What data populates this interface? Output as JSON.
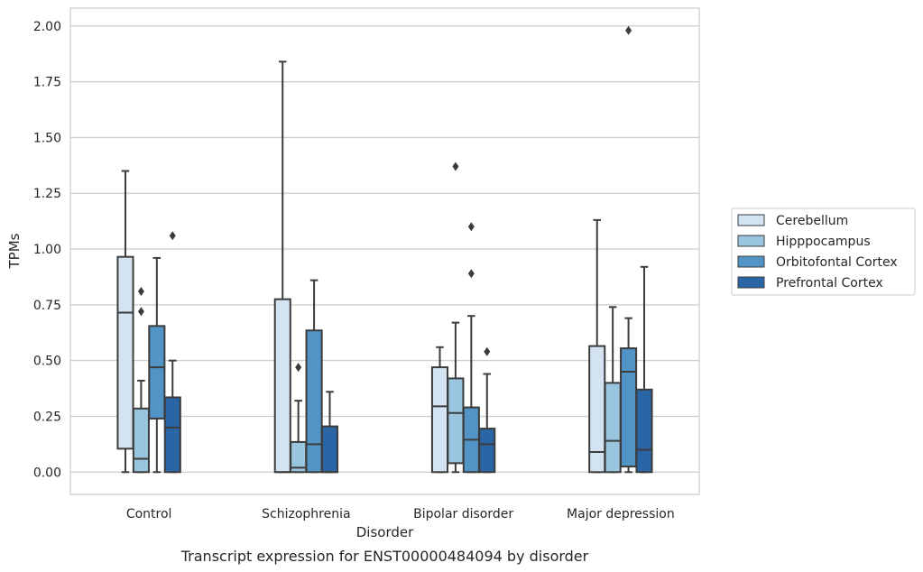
{
  "chart_data": {
    "type": "box",
    "title": "",
    "caption": "Transcript expression for ENST00000484094 by disorder",
    "xlabel": "Disorder",
    "ylabel": "TPMs",
    "ylim": [
      -0.1,
      2.08
    ],
    "yticks": [
      "0.00",
      "0.25",
      "0.50",
      "0.75",
      "1.00",
      "1.25",
      "1.50",
      "1.75",
      "2.00"
    ],
    "grid": "horizontal",
    "legend_position": "right",
    "categories": [
      "Control",
      "Schizophrenia",
      "Bipolar disorder",
      "Major depression"
    ],
    "series": [
      {
        "name": "Cerebellum",
        "color": "#d4e3f2",
        "boxes": [
          {
            "whislo": 0.0,
            "q1": 0.105,
            "med": 0.715,
            "q3": 0.965,
            "whishi": 1.35,
            "fliers": []
          },
          {
            "whislo": 0.0,
            "q1": 0.0,
            "med": 0.0,
            "q3": 0.775,
            "whishi": 1.84,
            "fliers": []
          },
          {
            "whislo": 0.0,
            "q1": 0.0,
            "med": 0.295,
            "q3": 0.47,
            "whishi": 0.56,
            "fliers": []
          },
          {
            "whislo": 0.0,
            "q1": 0.0,
            "med": 0.09,
            "q3": 0.565,
            "whishi": 1.13,
            "fliers": []
          }
        ]
      },
      {
        "name": "Hipppocampus",
        "color": "#9ac5de",
        "boxes": [
          {
            "whislo": 0.0,
            "q1": 0.0,
            "med": 0.06,
            "q3": 0.285,
            "whishi": 0.41,
            "fliers": [
              0.72,
              0.81
            ]
          },
          {
            "whislo": 0.0,
            "q1": 0.0,
            "med": 0.02,
            "q3": 0.135,
            "whishi": 0.32,
            "fliers": [
              0.47
            ]
          },
          {
            "whislo": 0.0,
            "q1": 0.04,
            "med": 0.265,
            "q3": 0.42,
            "whishi": 0.67,
            "fliers": [
              1.37
            ]
          },
          {
            "whislo": 0.0,
            "q1": 0.0,
            "med": 0.14,
            "q3": 0.4,
            "whishi": 0.74,
            "fliers": []
          }
        ]
      },
      {
        "name": "Orbitofontal Cortex",
        "color": "#5294c6",
        "boxes": [
          {
            "whislo": 0.0,
            "q1": 0.24,
            "med": 0.47,
            "q3": 0.655,
            "whishi": 0.96,
            "fliers": []
          },
          {
            "whislo": 0.0,
            "q1": 0.0,
            "med": 0.125,
            "q3": 0.635,
            "whishi": 0.86,
            "fliers": []
          },
          {
            "whislo": 0.0,
            "q1": 0.0,
            "med": 0.145,
            "q3": 0.29,
            "whishi": 0.7,
            "fliers": [
              0.89,
              1.1
            ]
          },
          {
            "whislo": 0.0,
            "q1": 0.025,
            "med": 0.45,
            "q3": 0.555,
            "whishi": 0.69,
            "fliers": [
              1.98
            ]
          }
        ]
      },
      {
        "name": "Prefrontal Cortex",
        "color": "#2a65a5",
        "boxes": [
          {
            "whislo": 0.0,
            "q1": 0.0,
            "med": 0.2,
            "q3": 0.335,
            "whishi": 0.5,
            "fliers": [
              1.06
            ]
          },
          {
            "whislo": 0.0,
            "q1": 0.0,
            "med": 0.0,
            "q3": 0.205,
            "whishi": 0.36,
            "fliers": []
          },
          {
            "whislo": 0.0,
            "q1": 0.0,
            "med": 0.125,
            "q3": 0.195,
            "whishi": 0.44,
            "fliers": [
              0.54
            ]
          },
          {
            "whislo": 0.0,
            "q1": 0.0,
            "med": 0.1,
            "q3": 0.37,
            "whishi": 0.92,
            "fliers": []
          }
        ]
      }
    ]
  }
}
